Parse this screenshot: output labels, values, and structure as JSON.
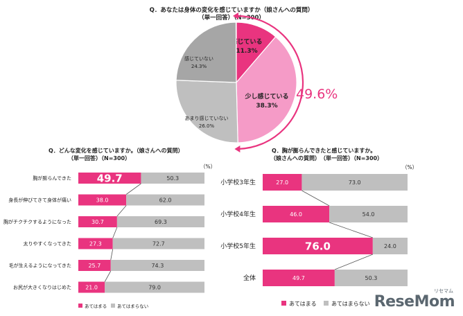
{
  "brand": {
    "accent": "#e9347f",
    "accent_light": "#f59bc7",
    "gray": "#bfbfbf",
    "gray_dark": "#a6a6a6"
  },
  "logo": {
    "text": "ReseMom",
    "kana": "リセマム"
  },
  "chart_data": [
    {
      "type": "pie",
      "title": "Q．あなたは身体の変化を感じていますか（娘さんへの質問）",
      "subtitle": "（単一回答）（N=300）",
      "slices": [
        {
          "label": "感じている",
          "value": 11.3
        },
        {
          "label": "少し感じている",
          "value": 38.3
        },
        {
          "label": "あまり感じていない",
          "value": 26.0
        },
        {
          "label": "感じていない",
          "value": 24.3
        }
      ],
      "callout": "49.6%"
    },
    {
      "type": "bar",
      "stacked": true,
      "horizontal": true,
      "title": "Q．どんな変化を感じていますか。（娘さんへの質問）",
      "subtitle": "（単一回答）（N=300）",
      "unit": "（%）",
      "categories": [
        "胸が膨らんできた",
        "身長が伸びてきて身体が痛い",
        "胸がチクチクするようになった",
        "太りやすくなってきた",
        "毛が生えるようになってきた",
        "お尻が大きくなりはじめた"
      ],
      "series": [
        {
          "name": "あてはまる",
          "values": [
            49.7,
            38.0,
            30.7,
            27.3,
            25.7,
            21.0
          ]
        },
        {
          "name": "あてはまらない",
          "values": [
            50.3,
            62.0,
            69.3,
            72.7,
            74.3,
            79.0
          ]
        }
      ]
    },
    {
      "type": "bar",
      "stacked": true,
      "horizontal": true,
      "title": "Q．胸が膨らんできたと感じていますか。",
      "subtitle": "（娘さんへの質問）　（単一回答）（N=300）",
      "unit": "（%）",
      "categories": [
        "小学校3年生",
        "小学校4年生",
        "小学校5年生",
        "全体"
      ],
      "series": [
        {
          "name": "あてはまる",
          "values": [
            27.0,
            46.0,
            76.0,
            49.7
          ]
        },
        {
          "name": "あてはまらない",
          "values": [
            73.0,
            54.0,
            24.0,
            50.3
          ]
        }
      ]
    }
  ]
}
